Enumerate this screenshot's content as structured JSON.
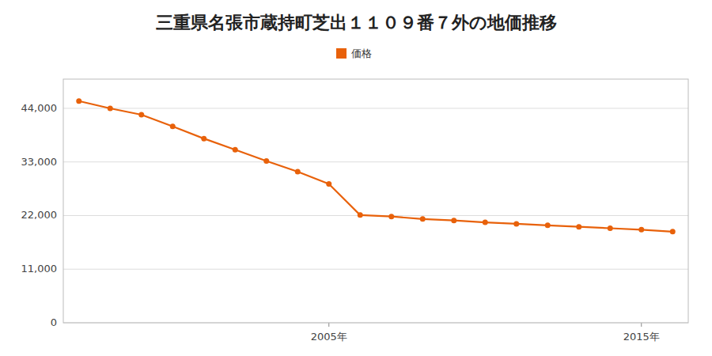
{
  "chart_data": {
    "type": "line",
    "title": "三重県名張市蔵持町芝出１１０９番７外の地価推移",
    "x": [
      1997,
      1998,
      1999,
      2000,
      2001,
      2002,
      2003,
      2004,
      2005,
      2006,
      2007,
      2008,
      2009,
      2010,
      2011,
      2012,
      2013,
      2014,
      2015,
      2016
    ],
    "series": [
      {
        "name": "価格",
        "color": "#E8610A",
        "marker": "circle",
        "values": [
          45500,
          44000,
          42700,
          40300,
          37800,
          35500,
          33200,
          31000,
          28500,
          22100,
          21800,
          21300,
          21000,
          20600,
          20300,
          20000,
          19700,
          19400,
          19100,
          18700
        ]
      }
    ],
    "xlim": [
      1996.5,
      2016.5
    ],
    "xticks": [
      {
        "value": 2005,
        "label": "2005年"
      },
      {
        "value": 2015,
        "label": "2015年"
      }
    ],
    "ylim": [
      0,
      50000
    ],
    "yticks": [
      0,
      {
        "value": 11000,
        "label": "11,000"
      },
      {
        "value": 22000,
        "label": "22,000"
      },
      {
        "value": 33000,
        "label": "33,000"
      },
      {
        "value": 44000,
        "label": "44,000"
      }
    ],
    "grid": true,
    "legend": "top"
  }
}
